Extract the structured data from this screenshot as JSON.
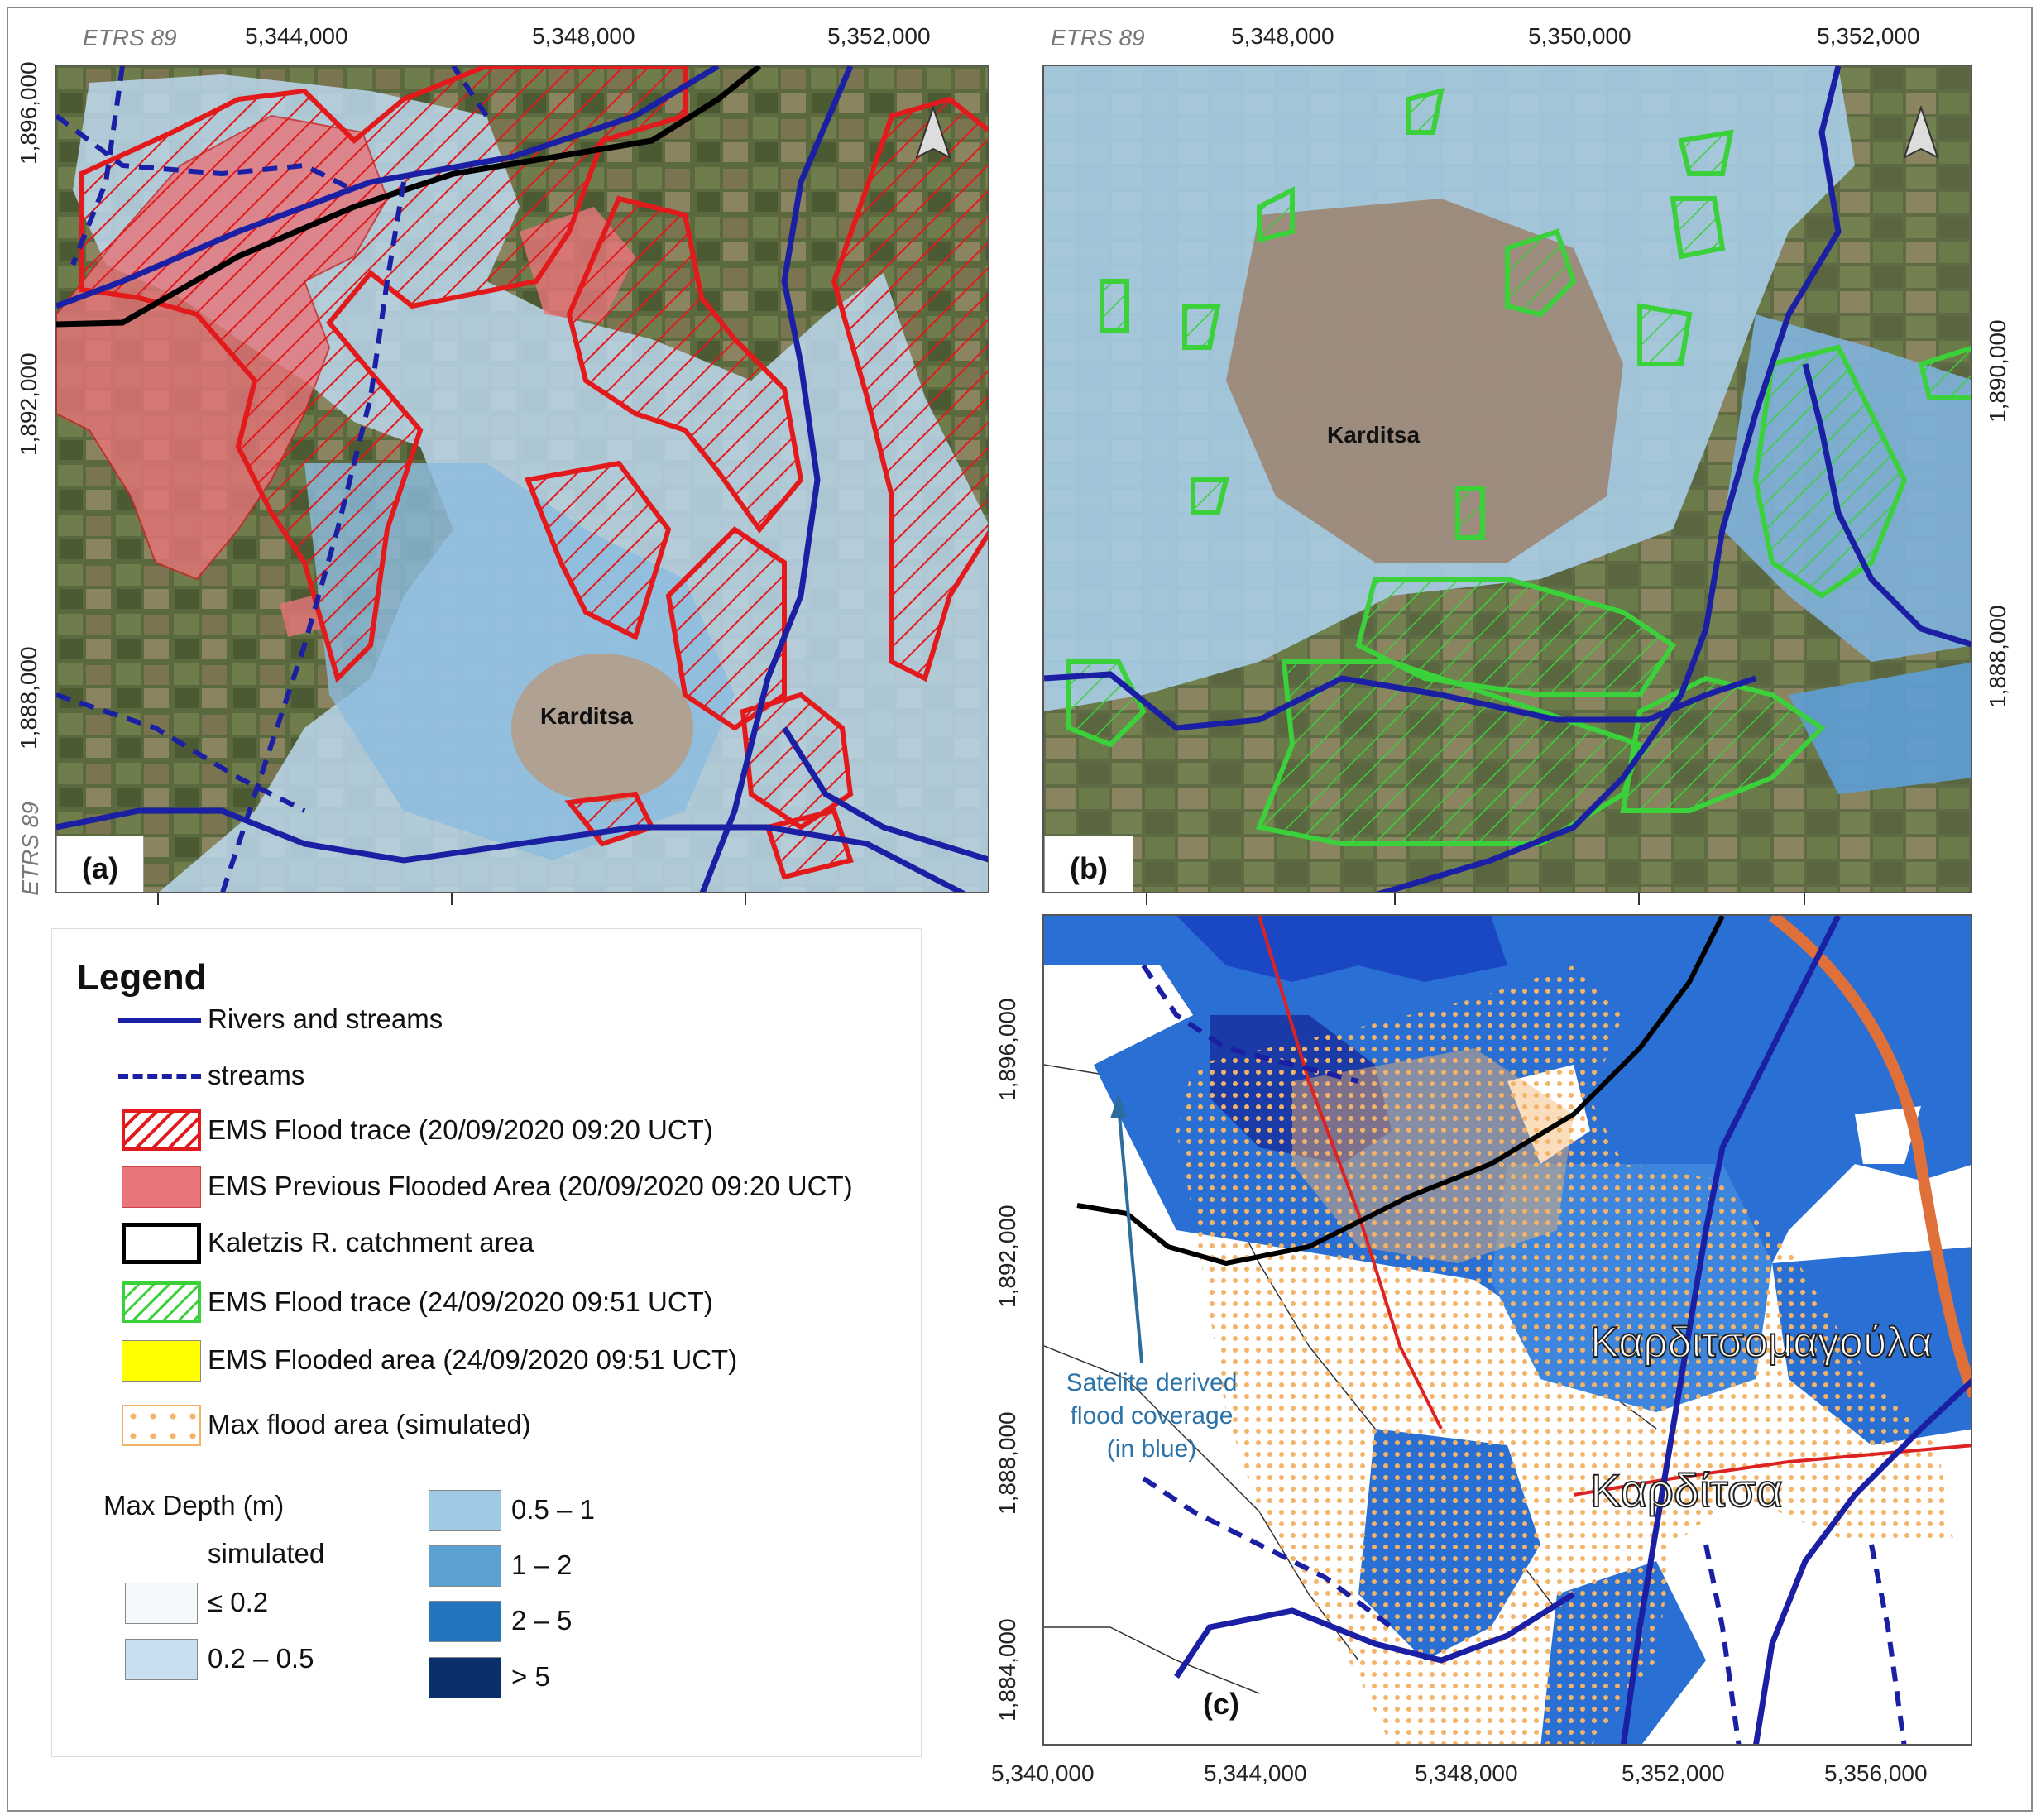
{
  "crs_label": "ETRS 89",
  "panel_a": {
    "label": "(a)",
    "town": "Karditsa",
    "x_ticks": [
      "5,344,000",
      "5,348,000",
      "5,352,000"
    ],
    "y_ticks": [
      "1,896,000",
      "1,892,000",
      "1,888,000"
    ]
  },
  "panel_b": {
    "label": "(b)",
    "town": "Karditsa",
    "x_ticks": [
      "5,348,000",
      "5,350,000",
      "5,352,000"
    ],
    "y_ticks": [
      "1,890,000",
      "1,888,000"
    ]
  },
  "panel_c": {
    "label": "(c)",
    "x_ticks": [
      "5,340,000",
      "5,344,000",
      "5,348,000",
      "5,352,000",
      "5,356,000"
    ],
    "y_ticks": [
      "1,896,000",
      "1,892,000",
      "1,888,000",
      "1,884,000"
    ],
    "annotation": "Satelite derived flood coverage (in blue)",
    "map_text_1": "Καρδιτσομαγούλα",
    "map_text_2": "Καρδίτσα"
  },
  "legend": {
    "title": "Legend",
    "items": [
      {
        "label": "Rivers and streams"
      },
      {
        "label": "streams"
      },
      {
        "label": "EMS Flood trace (20/09/2020 09:20 UCT)"
      },
      {
        "label": "EMS Previous Flooded Area (20/09/2020 09:20 UCT)"
      },
      {
        "label": "Kaletzis R. catchment area"
      },
      {
        "label": "EMS Flood trace  (24/09/2020 09:51 UCT)"
      },
      {
        "label": "EMS Flooded area  (24/09/2020 09:51 UCT)"
      },
      {
        "label": "Max flood area (simulated)"
      }
    ],
    "depth_title": "Max Depth (m)",
    "depth_subtitle": "simulated",
    "depth_classes": [
      {
        "label": "≤ 0.2",
        "color": "#f4f9fe"
      },
      {
        "label": "0.2 – 0.5",
        "color": "#c9def0"
      },
      {
        "label": "0.5 – 1",
        "color": "#9ec9e4"
      },
      {
        "label": "1 – 2",
        "color": "#5ba1d4"
      },
      {
        "label": "2 – 5",
        "color": "#2574be"
      },
      {
        "label": "> 5",
        "color": "#0b2f6b"
      }
    ]
  },
  "colors": {
    "river": "#1b1fa3",
    "ems_trace_red": "#e31a1c",
    "ems_previous_red": "#e8747a",
    "catchment": "#000000",
    "ems_trace_green": "#3ad13a",
    "ems_flooded_yellow": "#ffff00",
    "max_flood_orange": "#f3b46a"
  }
}
